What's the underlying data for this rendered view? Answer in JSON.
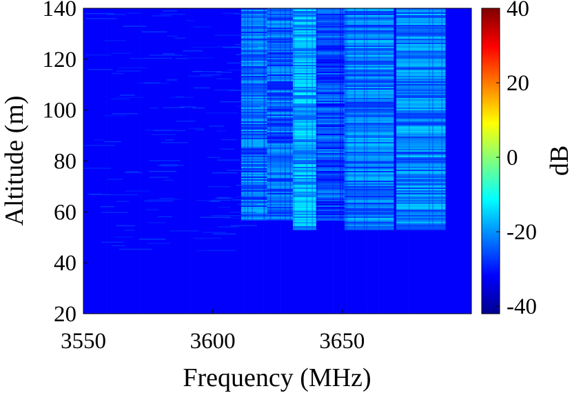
{
  "chart_data": {
    "type": "heatmap",
    "xlabel": "Frequency (MHz)",
    "ylabel": "Altitude (m)",
    "colorbar_label": "dB",
    "xlim": [
      3550,
      3700
    ],
    "ylim": [
      20,
      140
    ],
    "x_ticks": [
      3550,
      3600,
      3650
    ],
    "x_tick_labels": [
      "3550",
      "3600",
      "3650"
    ],
    "y_ticks": [
      20,
      40,
      60,
      80,
      100,
      120,
      140
    ],
    "y_tick_labels": [
      "20",
      "40",
      "60",
      "80",
      "100",
      "120",
      "140"
    ],
    "clim": [
      -42,
      40
    ],
    "colorbar_ticks": [
      40,
      20,
      0,
      -20,
      -40
    ],
    "colorbar_tick_labels": [
      "40",
      "20",
      "0",
      "-20",
      "-40"
    ],
    "colormap": "jet",
    "background_level_db": -32,
    "active_bands": [
      {
        "freq_range_mhz": [
          3611,
          3621
        ],
        "altitude_range_m": [
          57,
          140
        ],
        "level_db": -23
      },
      {
        "freq_range_mhz": [
          3621,
          3631
        ],
        "altitude_range_m": [
          57,
          140
        ],
        "level_db": -24
      },
      {
        "freq_range_mhz": [
          3631,
          3640
        ],
        "altitude_range_m": [
          53,
          140
        ],
        "level_db": -18
      },
      {
        "freq_range_mhz": [
          3640,
          3651
        ],
        "altitude_range_m": [
          57,
          140
        ],
        "level_db": -26
      },
      {
        "freq_range_mhz": [
          3651,
          3670
        ],
        "altitude_range_m": [
          53,
          140
        ],
        "level_db": -22
      },
      {
        "freq_range_mhz": [
          3671,
          3690
        ],
        "altitude_range_m": [
          53,
          140
        ],
        "level_db": -21
      }
    ],
    "grid": false
  }
}
